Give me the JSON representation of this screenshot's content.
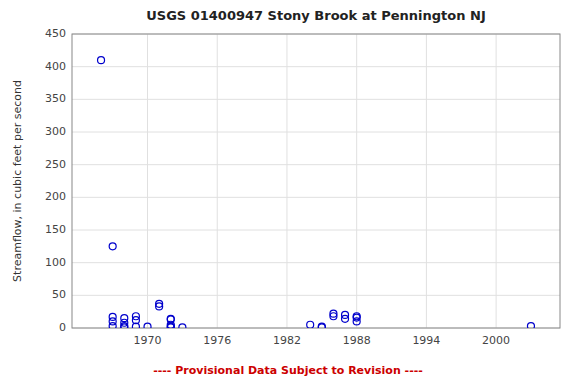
{
  "chart_data": {
    "type": "scatter",
    "title": "USGS 01400947 Stony Brook at Pennington NJ",
    "ylabel": "Streamflow, in cubic feet per second",
    "annotations": [
      {
        "text": "---- Provisional Data Subject to Revision ----",
        "color": "#cc0000"
      }
    ],
    "x": [
      1966,
      1967,
      1967,
      1967,
      1967,
      1968,
      1968,
      1968,
      1968,
      1969,
      1969,
      1969,
      1970,
      1971,
      1971,
      1972,
      1972,
      1972,
      1972,
      1972,
      1973,
      1984,
      1985,
      1985,
      1986,
      1986,
      1987,
      1987,
      1988,
      1988,
      1988,
      2003
    ],
    "values": [
      410,
      125,
      17,
      10,
      3,
      15,
      8,
      3,
      1,
      18,
      12,
      2,
      2,
      37,
      33,
      14,
      13,
      5,
      2,
      1,
      1,
      5,
      2,
      1,
      22,
      18,
      20,
      14,
      18,
      16,
      10,
      3
    ],
    "color": "#0000cc",
    "marker": "circle",
    "xlim": [
      1963.5,
      2005.5
    ],
    "ylim": [
      0,
      450
    ],
    "xticks": [
      1970,
      1976,
      1982,
      1988,
      1994,
      2000
    ],
    "yticks": [
      0,
      50,
      100,
      150,
      200,
      250,
      300,
      350,
      400,
      450
    ],
    "grid": true
  }
}
